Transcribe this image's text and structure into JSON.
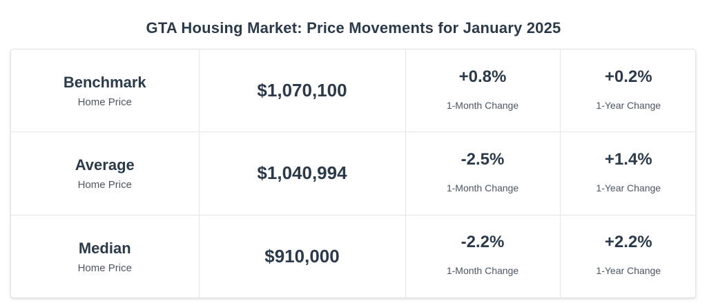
{
  "title": "GTA Housing Market: Price Movements for January 2025",
  "rows": [
    {
      "metric": "Benchmark",
      "sub": "Home Price",
      "price": "$1,070,100",
      "month_change": "+0.8%",
      "month_label": "1-Month Change",
      "year_change": "+0.2%",
      "year_label": "1-Year Change"
    },
    {
      "metric": "Average",
      "sub": "Home Price",
      "price": "$1,040,994",
      "month_change": "-2.5%",
      "month_label": "1-Month Change",
      "year_change": "+1.4%",
      "year_label": "1-Year Change"
    },
    {
      "metric": "Median",
      "sub": "Home Price",
      "price": "$910,000",
      "month_change": "-2.2%",
      "month_label": "1-Month Change",
      "year_change": "+2.2%",
      "year_label": "1-Year Change"
    }
  ],
  "colors": {
    "text": "#2b3a4a",
    "subtext": "#4a5563",
    "border": "#e2e4e8"
  }
}
